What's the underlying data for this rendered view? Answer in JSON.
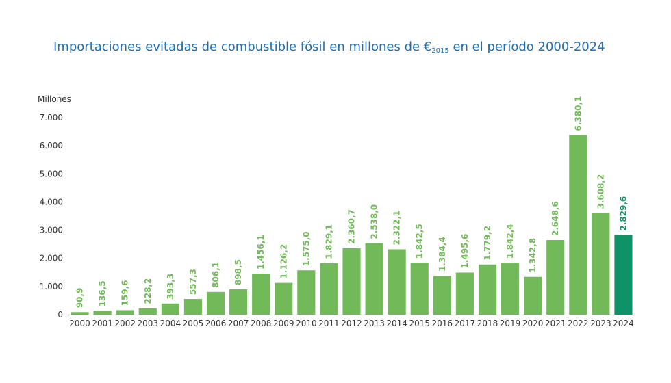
{
  "title": {
    "pre": "Importaciones evitadas de combustible fósil en millones de €",
    "sub": "2015",
    "post": " en el período 2000-2024"
  },
  "colors": {
    "bar": "#72b95a",
    "highlight": "#0e9267",
    "label": "#72b95a",
    "highlight_label": "#0e9267",
    "title": "#1f6fb2"
  },
  "chart_data": {
    "type": "bar",
    "title": "Importaciones evitadas de combustible fósil en millones de €2015 en el período 2000-2024",
    "ylabel": "Millones",
    "xlabel": "",
    "ylim": [
      0,
      7000
    ],
    "yticks": [
      0,
      1000,
      2000,
      3000,
      4000,
      5000,
      6000,
      7000
    ],
    "ytick_labels": [
      "0",
      "1.000",
      "2.000",
      "3.000",
      "4.000",
      "5.000",
      "6.000",
      "7.000"
    ],
    "categories": [
      "2000",
      "2001",
      "2002",
      "2003",
      "2004",
      "2005",
      "2006",
      "2007",
      "2008",
      "2009",
      "2010",
      "2011",
      "2012",
      "2013",
      "2014",
      "2015",
      "2016",
      "2017",
      "2018",
      "2019",
      "2020",
      "2021",
      "2022",
      "2023",
      "2024"
    ],
    "values": [
      90.9,
      136.5,
      159.6,
      228.2,
      393.3,
      557.3,
      806.1,
      898.5,
      1456.1,
      1126.2,
      1575.0,
      1829.1,
      2360.7,
      2538.0,
      2322.1,
      1842.5,
      1384.4,
      1495.6,
      1779.2,
      1842.4,
      1342.8,
      2648.6,
      6380.1,
      3608.2,
      2829.6
    ],
    "labels": [
      "90,9",
      "136,5",
      "159,6",
      "228,2",
      "393,3",
      "557,3",
      "806,1",
      "898,5",
      "1.456,1",
      "1.126,2",
      "1.575,0",
      "1.829,1",
      "2.360,7",
      "2.538,0",
      "2.322,1",
      "1.842,5",
      "1.384,4",
      "1.495,6",
      "1.779,2",
      "1.842,4",
      "1.342,8",
      "2.648,6",
      "6.380,1",
      "3.608,2",
      "2.829,6"
    ],
    "highlight_category": "2024",
    "grid": false,
    "legend": "none"
  }
}
